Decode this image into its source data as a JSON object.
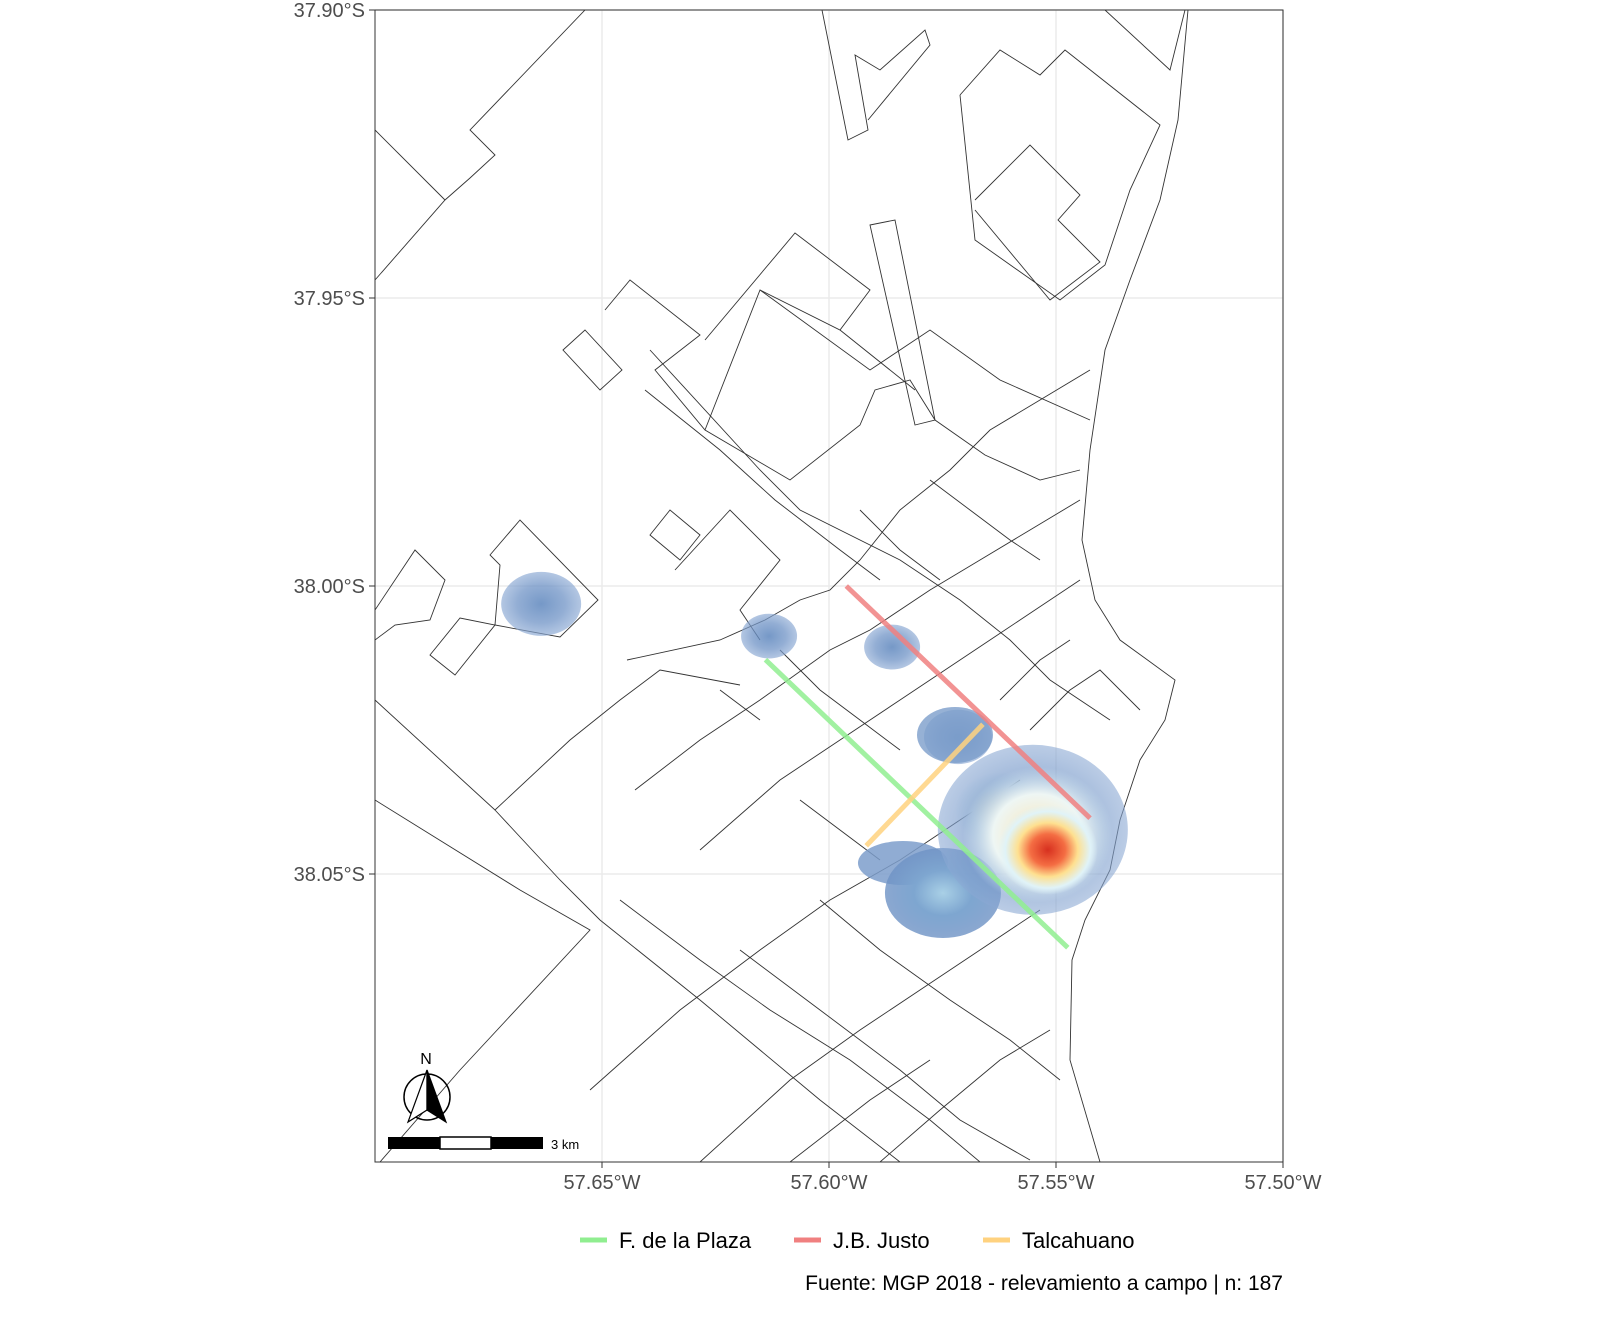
{
  "map": {
    "x_ticks": [
      {
        "value": -57.65,
        "label": "57.65°W"
      },
      {
        "value": -57.6,
        "label": "57.60°W"
      },
      {
        "value": -57.55,
        "label": "57.55°W"
      },
      {
        "value": -57.5,
        "label": "57.50°W"
      }
    ],
    "y_ticks": [
      {
        "value": -37.9,
        "label": "37.90°S"
      },
      {
        "value": -37.95,
        "label": "37.95°S"
      },
      {
        "value": -38.0,
        "label": "38.00°S"
      },
      {
        "value": -38.05,
        "label": "38.05°S"
      }
    ],
    "xlim": [
      -57.7,
      -57.5
    ],
    "ylim": [
      -38.1,
      -37.9
    ],
    "grid": true,
    "north_arrow_label": "N",
    "scale_bar_label": "3 km",
    "routes": [
      {
        "name": "F. de la Plaza",
        "color": "#90EE90",
        "path": [
          [
            -57.614,
            -38.0128
          ],
          [
            -57.5474,
            -38.0628
          ]
        ]
      },
      {
        "name": "J.B. Justo",
        "color": "#F08080",
        "path": [
          [
            -57.5962,
            -38.0
          ],
          [
            -57.5425,
            -38.0403
          ]
        ]
      },
      {
        "name": "Talcahuano",
        "color": "#FFD27F",
        "path": [
          [
            -57.5918,
            -38.0451
          ],
          [
            -57.5661,
            -38.024
          ]
        ]
      }
    ],
    "density_hotspots": [
      {
        "lon": -57.6634,
        "lat": -38.0031,
        "level": 0.2
      },
      {
        "lon": -57.6132,
        "lat": -38.0087,
        "level": 0.1
      },
      {
        "lon": -57.5861,
        "lat": -38.0106,
        "level": 0.1
      },
      {
        "lon": -57.5716,
        "lat": -38.0262,
        "level": 0.15
      },
      {
        "lon": -57.5749,
        "lat": -38.0533,
        "level": 0.4
      },
      {
        "lon": -57.5623,
        "lat": -38.0389,
        "level": 0.7
      },
      {
        "lon": -57.5518,
        "lat": -38.0458,
        "level": 1.0
      }
    ]
  },
  "legend": {
    "position": "bottom",
    "items": [
      "F. de la Plaza",
      "J.B. Justo",
      "Talcahuano"
    ]
  },
  "caption": "Fuente: MGP 2018 - relevamiento a campo | n: 187"
}
